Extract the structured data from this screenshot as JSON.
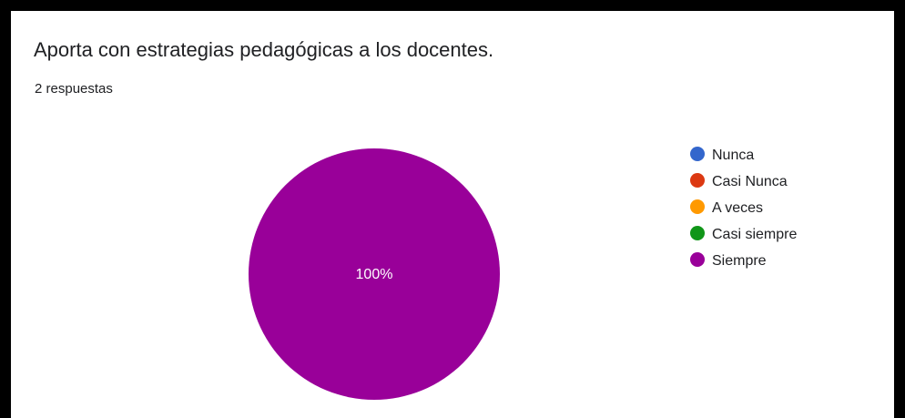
{
  "title": "Aporta con estrategias pedagógicas a los docentes.",
  "response_count": "2 respuestas",
  "chart_data": {
    "type": "pie",
    "categories": [
      "Nunca",
      "Casi Nunca",
      "A veces",
      "Casi siempre",
      "Siempre"
    ],
    "values": [
      0,
      0,
      0,
      0,
      2
    ],
    "percent_labels": [
      "",
      "",
      "",
      "",
      "100%"
    ],
    "colors": [
      "#3366cc",
      "#dc3912",
      "#ff9900",
      "#109618",
      "#990099"
    ],
    "legend_position": "right"
  }
}
